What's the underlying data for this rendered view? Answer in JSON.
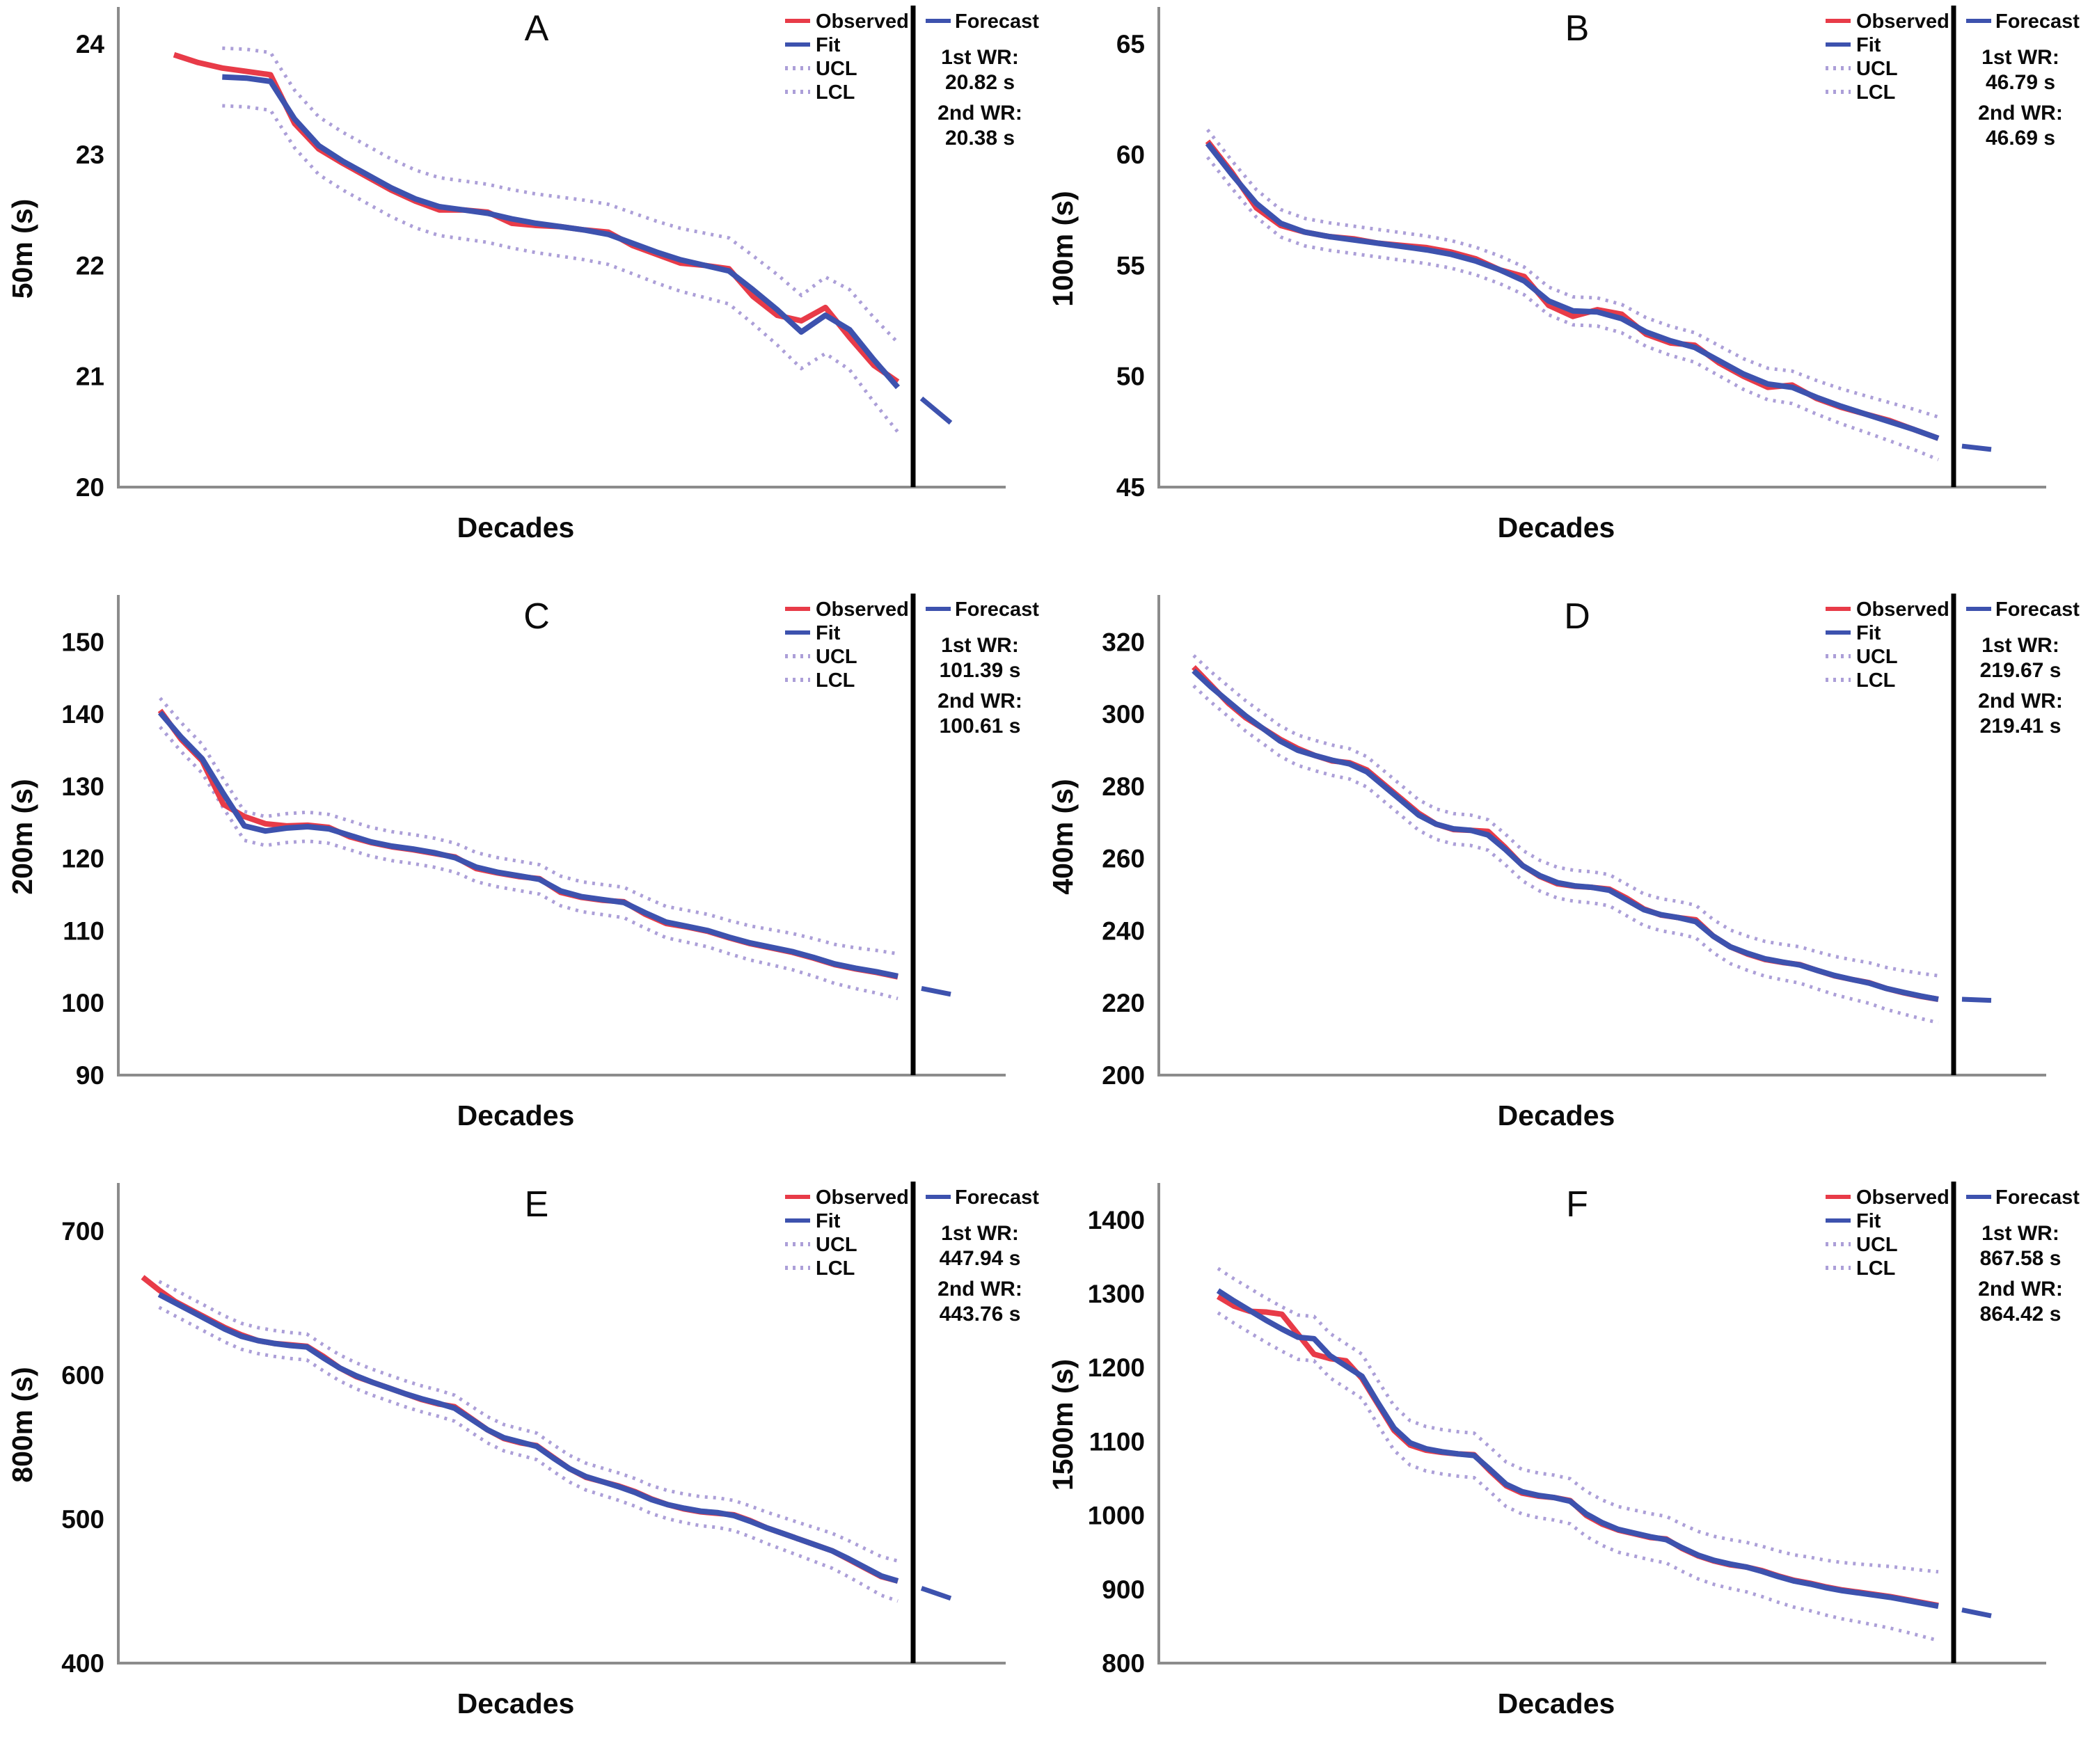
{
  "legend": {
    "observed": "Observed",
    "fit": "Fit",
    "ucl": "UCL",
    "lcl": "LCL",
    "forecast": "Forecast"
  },
  "colors": {
    "observed": "#E83B48",
    "fit": "#3D52AE",
    "band": "#AC9FD8",
    "axis": "#8C8C8C",
    "divider": "#000000",
    "text": "#0B0B0B"
  },
  "chart_data": [
    {
      "type": "line",
      "title": "A",
      "ylabel": "50m (s)",
      "xlabel": "Decades",
      "ylim": [
        20,
        24.3
      ],
      "yticks": [
        20,
        21,
        22,
        23,
        24
      ],
      "band": 0.26,
      "xstart": 250,
      "wr1_label": "1st WR:",
      "wr1_value": "20.82 s",
      "wr2_label": "2nd WR:",
      "wr2_value": "20.38 s",
      "series": {
        "observed": [
          23.9,
          23.83,
          23.78,
          23.75,
          23.72,
          23.28,
          23.05,
          22.92,
          22.8,
          22.68,
          22.58,
          22.5,
          22.5,
          22.48,
          22.38,
          22.36,
          22.35,
          22.32,
          22.3,
          22.18,
          22.1,
          22.02,
          22.0,
          21.97,
          21.72,
          21.55,
          21.5,
          21.62,
          21.35,
          21.1,
          20.95
        ],
        "fit": [
          null,
          null,
          23.7,
          23.69,
          23.66,
          23.32,
          23.08,
          22.94,
          22.82,
          22.7,
          22.6,
          22.53,
          22.5,
          22.47,
          22.42,
          22.38,
          22.35,
          22.32,
          22.28,
          22.2,
          22.12,
          22.05,
          22.0,
          21.95,
          21.78,
          21.6,
          21.4,
          21.55,
          21.42,
          21.15,
          20.9
        ],
        "forecast": [
          20.8,
          20.58
        ]
      }
    },
    {
      "type": "line",
      "title": "B",
      "ylabel": "100m (s)",
      "xlabel": "Decades",
      "ylim": [
        45,
        66.5
      ],
      "yticks": [
        45,
        50,
        55,
        60,
        65
      ],
      "band": 0.62,
      "xstart": 240,
      "wr1_label": "1st WR:",
      "wr1_value": "46.79 s",
      "wr2_label": "2nd WR:",
      "wr2_value": "46.69 s",
      "series": {
        "observed": [
          60.6,
          59.2,
          57.6,
          56.8,
          56.5,
          56.3,
          56.2,
          56.0,
          55.9,
          55.8,
          55.6,
          55.3,
          54.8,
          54.5,
          53.2,
          52.7,
          53.0,
          52.8,
          51.9,
          51.5,
          51.4,
          50.6,
          50.0,
          49.5,
          49.6,
          49.0,
          48.6,
          48.3,
          48.0,
          47.6,
          47.2
        ],
        "fit": [
          60.5,
          59.1,
          57.8,
          56.9,
          56.5,
          56.3,
          56.15,
          56.0,
          55.85,
          55.7,
          55.5,
          55.2,
          54.8,
          54.3,
          53.4,
          52.95,
          52.9,
          52.6,
          52.0,
          51.6,
          51.3,
          50.7,
          50.1,
          49.65,
          49.5,
          49.05,
          48.65,
          48.3,
          47.95,
          47.6,
          47.2
        ],
        "forecast": [
          46.85,
          46.7
        ]
      }
    },
    {
      "type": "line",
      "title": "C",
      "ylabel": "200m (s)",
      "xlabel": "Decades",
      "ylim": [
        90,
        156
      ],
      "yticks": [
        90,
        100,
        110,
        120,
        130,
        140,
        150
      ],
      "band": 2.0,
      "xstart": 230,
      "wr1_label": "1st WR:",
      "wr1_value": "101.39 s",
      "wr2_label": "2nd WR:",
      "wr2_value": "100.61 s",
      "series": {
        "observed": [
          140.5,
          136.5,
          133.5,
          127.5,
          125.8,
          124.8,
          124.5,
          124.6,
          124.3,
          123.0,
          122.2,
          121.6,
          121.2,
          120.7,
          120.2,
          118.6,
          118.0,
          117.5,
          117.2,
          115.3,
          114.6,
          114.2,
          114.0,
          112.3,
          111.0,
          110.5,
          109.9,
          109.0,
          108.2,
          107.6,
          107.0,
          106.2,
          105.3,
          104.7,
          104.2,
          103.6
        ],
        "fit": [
          140.2,
          136.8,
          133.8,
          129.0,
          124.5,
          123.8,
          124.2,
          124.4,
          124.1,
          123.2,
          122.3,
          121.7,
          121.3,
          120.8,
          120.1,
          118.8,
          118.1,
          117.6,
          117.1,
          115.5,
          114.7,
          114.3,
          113.9,
          112.5,
          111.2,
          110.6,
          110.0,
          109.1,
          108.3,
          107.7,
          107.1,
          106.3,
          105.4,
          104.8,
          104.3,
          103.7
        ],
        "forecast": [
          102.0,
          101.2
        ]
      }
    },
    {
      "type": "line",
      "title": "D",
      "ylabel": "400m (s)",
      "xlabel": "Decades",
      "ylim": [
        200,
        332
      ],
      "yticks": [
        200,
        220,
        240,
        260,
        280,
        300,
        320
      ],
      "band": 4.2,
      "xstart": 220,
      "wr1_label": "1st WR:",
      "wr1_value": "219.67 s",
      "wr2_label": "2nd WR:",
      "wr2_value": "219.41 s",
      "series": {
        "observed": [
          313,
          308,
          303,
          299,
          296,
          293,
          290.5,
          288.5,
          287,
          286.5,
          284.5,
          280.5,
          276.5,
          272.5,
          269.5,
          268,
          267.8,
          267.5,
          263,
          258,
          255,
          253,
          252.3,
          252,
          251.5,
          249,
          246,
          244.3,
          243.6,
          243,
          238.5,
          235.5,
          233.5,
          232,
          231.2,
          230.6,
          229,
          227.5,
          226.5,
          225.6,
          224,
          222.8,
          221.8,
          221
        ],
        "fit": [
          312,
          307.5,
          303.5,
          299.5,
          296,
          292.5,
          290,
          288.5,
          287.2,
          286.2,
          284,
          280,
          276,
          272,
          269.5,
          268.2,
          267.8,
          266.5,
          262.5,
          258,
          255.2,
          253.3,
          252.4,
          252,
          251.2,
          248.5,
          245.8,
          244.4,
          243.6,
          242.5,
          238.5,
          235.5,
          233.7,
          232.2,
          231.3,
          230.5,
          229,
          227.6,
          226.5,
          225.5,
          224,
          222.9,
          221.9,
          221
        ],
        "forecast": [
          221,
          220.7
        ]
      }
    },
    {
      "type": "line",
      "title": "E",
      "ylabel": "800m (s)",
      "xlabel": "Decades",
      "ylim": [
        400,
        731
      ],
      "yticks": [
        400,
        500,
        600,
        700
      ],
      "band": 9,
      "xstart": 205,
      "wr1_label": "1st WR:",
      "wr1_value": "447.94 s",
      "wr2_label": "2nd WR:",
      "wr2_value": "443.76 s",
      "series": {
        "observed": [
          668,
          659,
          651,
          645,
          639,
          633,
          628,
          624,
          622,
          621,
          620,
          613,
          605,
          599,
          595,
          591,
          587,
          583,
          580,
          578,
          570,
          562,
          556,
          553,
          551,
          543,
          535,
          529,
          526,
          523,
          519,
          514,
          510,
          507,
          505,
          504,
          503,
          499,
          494,
          490,
          486,
          482,
          478,
          472,
          466,
          460,
          457
        ],
        "fit": [
          null,
          656,
          650,
          644,
          638,
          632,
          627,
          624,
          622,
          620.5,
          619.5,
          612,
          605,
          599.5,
          595,
          591,
          587,
          583.5,
          580.5,
          577,
          569.5,
          562,
          556.5,
          553.5,
          550.5,
          542.5,
          535,
          529.5,
          526,
          522.5,
          518.5,
          513.5,
          510,
          507.5,
          505.5,
          504.5,
          502.5,
          498.5,
          494,
          490,
          486,
          482,
          478,
          472.5,
          466.5,
          460.5,
          457
        ],
        "forecast": [
          452,
          445
        ]
      }
    },
    {
      "type": "line",
      "title": "F",
      "ylabel": "1500m (s)",
      "xlabel": "Decades",
      "ylim": [
        800,
        1445
      ],
      "yticks": [
        800,
        900,
        1000,
        1100,
        1200,
        1300,
        1400
      ],
      "band": 30,
      "xstart": 255,
      "wr1_label": "1st WR:",
      "wr1_value": "867.58 s",
      "wr2_label": "2nd WR:",
      "wr2_value": "864.42 s",
      "series": {
        "observed": [
          1296,
          1283,
          1276,
          1275,
          1272,
          1245,
          1218,
          1212,
          1209,
          1185,
          1150,
          1115,
          1095,
          1088,
          1085,
          1083,
          1082,
          1060,
          1040,
          1030,
          1026,
          1024,
          1020,
          1000,
          988,
          980,
          975,
          970,
          968,
          955,
          945,
          938,
          933,
          930,
          925,
          918,
          912,
          908,
          903,
          899,
          896,
          893,
          890,
          886,
          882,
          878
        ],
        "fit": [
          1304,
          1290,
          1277,
          1264,
          1252,
          1241,
          1239,
          1216,
          1202,
          1188,
          1152,
          1118,
          1098,
          1090,
          1086,
          1083,
          1081,
          1062,
          1042,
          1032,
          1027,
          1024,
          1019,
          1002,
          990,
          981,
          976,
          971,
          967,
          956,
          946,
          939,
          934,
          930,
          924,
          917,
          911,
          907,
          902,
          898,
          895,
          892,
          889,
          885,
          881,
          877
        ],
        "forecast": [
          872,
          864
        ]
      }
    }
  ]
}
